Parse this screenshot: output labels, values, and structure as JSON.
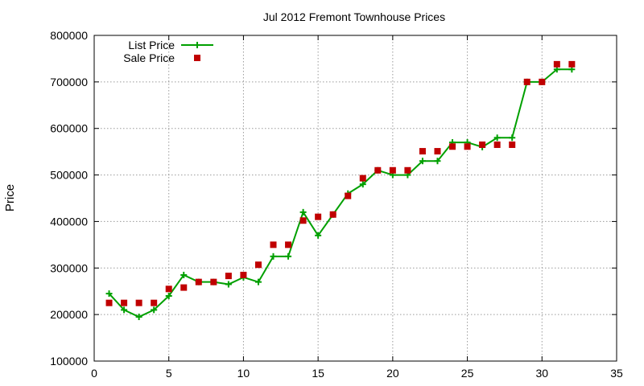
{
  "chart_data": {
    "type": "line",
    "title": "Jul 2012 Fremont Townhouse Prices",
    "xlabel": "",
    "ylabel": "Price",
    "xlim": [
      0,
      35
    ],
    "ylim": [
      100000,
      800000
    ],
    "x_ticks": [
      0,
      5,
      10,
      15,
      20,
      25,
      30,
      35
    ],
    "y_ticks": [
      100000,
      200000,
      300000,
      400000,
      500000,
      600000,
      700000,
      800000
    ],
    "x_tick_labels": [
      "0",
      "5",
      "10",
      "15",
      "20",
      "25",
      "30",
      "35"
    ],
    "y_tick_labels": [
      "100000",
      "200000",
      "300000",
      "400000",
      "500000",
      "600000",
      "700000",
      "800000"
    ],
    "grid": true,
    "legend_position": "top-left",
    "series": [
      {
        "name": "List Price",
        "style": "line+plus",
        "color": "#00a000",
        "x": [
          1,
          2,
          3,
          4,
          5,
          6,
          7,
          8,
          9,
          10,
          11,
          12,
          13,
          14,
          15,
          16,
          17,
          18,
          19,
          20,
          21,
          22,
          23,
          24,
          25,
          26,
          27,
          28,
          29,
          30,
          31,
          32
        ],
        "y": [
          245000,
          210000,
          195000,
          210000,
          240000,
          285000,
          270000,
          270000,
          265000,
          280000,
          270000,
          325000,
          325000,
          420000,
          370000,
          415000,
          460000,
          480000,
          510000,
          500000,
          500000,
          530000,
          530000,
          570000,
          570000,
          560000,
          580000,
          580000,
          700000,
          700000,
          727000,
          727000
        ]
      },
      {
        "name": "Sale Price",
        "style": "square",
        "color": "#c00000",
        "x": [
          1,
          2,
          3,
          4,
          5,
          6,
          7,
          8,
          9,
          10,
          11,
          12,
          13,
          14,
          15,
          16,
          17,
          18,
          19,
          20,
          21,
          22,
          23,
          24,
          25,
          26,
          27,
          28,
          29,
          30,
          31,
          32
        ],
        "y": [
          225000,
          225000,
          225000,
          225000,
          255000,
          258000,
          270000,
          270000,
          283000,
          285000,
          307000,
          350000,
          350000,
          402000,
          410000,
          415000,
          455000,
          493000,
          510000,
          510000,
          510000,
          551000,
          551000,
          561000,
          561000,
          565000,
          565000,
          565000,
          700000,
          700000,
          738000,
          738000
        ]
      }
    ]
  }
}
